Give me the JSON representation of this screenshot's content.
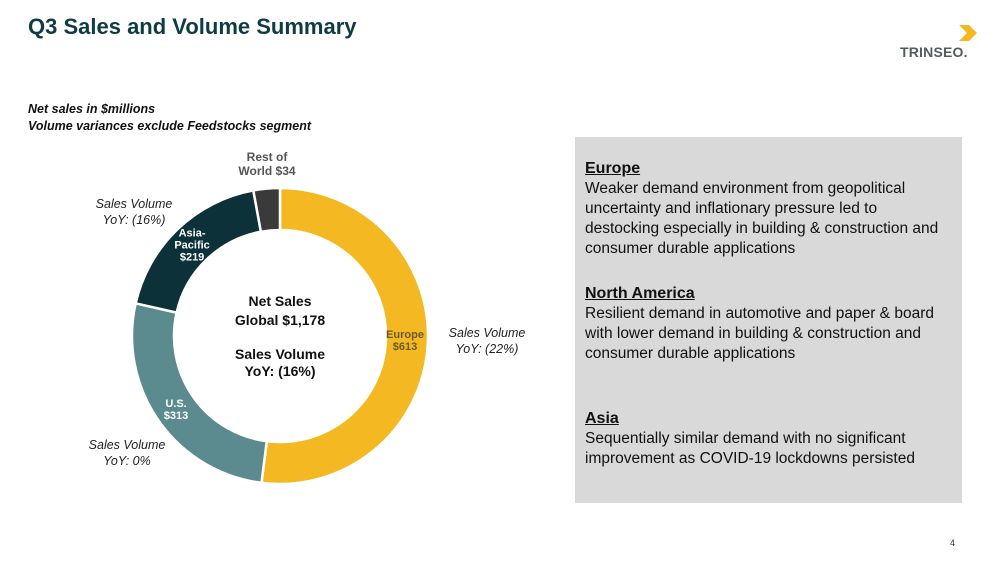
{
  "title": "Q3 Sales and Volume Summary",
  "logo": {
    "text": "TRINSEO",
    "mark": "."
  },
  "notes": [
    "Net sales in $millions",
    "Volume variances exclude Feedstocks segment"
  ],
  "center": {
    "line1": "Net Sales",
    "line2": "Global $1,178",
    "line3": "Sales Volume",
    "line4": "YoY: (16%)"
  },
  "callouts": {
    "asia": [
      "Sales Volume",
      "YoY: (16%)"
    ],
    "europe": [
      "Sales Volume",
      "YoY: (22%)"
    ],
    "us": [
      "Sales Volume",
      "YoY: 0%"
    ]
  },
  "chart_data": {
    "type": "pie",
    "title": "",
    "categories": [
      "Europe",
      "U.S.",
      "Asia-Pacific",
      "Rest of World"
    ],
    "values": [
      613,
      313,
      219,
      34
    ],
    "labels": [
      [
        "Europe",
        "$613"
      ],
      [
        "U.S.",
        "$313"
      ],
      [
        "Asia-",
        "Pacific",
        "$219"
      ],
      [
        "Rest of",
        "World $34"
      ]
    ],
    "colors": [
      "#f4b922",
      "#5b8a8f",
      "#0c3138",
      "#3a3a3a"
    ],
    "label_colors": [
      "#6b5a2a",
      "#ffffff",
      "#ffffff",
      "#555555"
    ]
  },
  "panel": [
    {
      "name": "Europe",
      "text": "Weaker demand environment from geopolitical uncertainty and inflationary pressure led to destocking especially in building & construction and consumer durable applications"
    },
    {
      "name": "North America",
      "text": "Resilient demand in automotive and paper & board with lower demand in building & construction and consumer durable applications"
    },
    {
      "name": "Asia",
      "text": "Sequentially similar demand with no significant improvement as COVID-19 lockdowns persisted"
    }
  ],
  "page_number": "4"
}
